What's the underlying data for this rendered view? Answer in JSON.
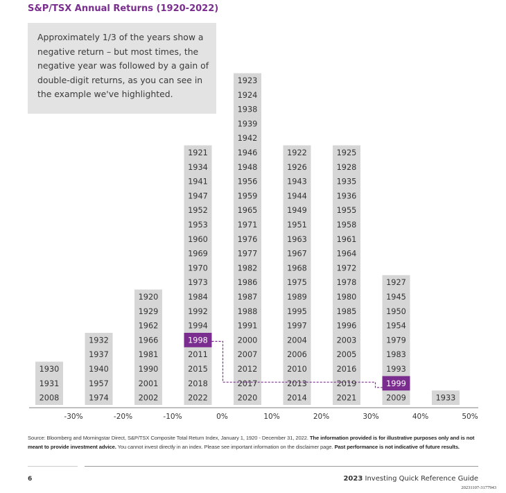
{
  "title": "S&P/TSX Annual Returns (1920-2022)",
  "callout_text": "Approximately 1/3 of the years show a negative return – but most times, the negative year was followed by a gain of double-digit returns, as you can see in the example we've highlighted.",
  "colors": {
    "title": "#7a2d8e",
    "bar": "#d6d6d6",
    "highlight": "#7a2d8e",
    "callout_bg": "#e3e3e3"
  },
  "chart_data": {
    "type": "bar",
    "description_of_bins": "Years stacked by annual return range",
    "x_axis_ticks": [
      "-30%",
      "-20%",
      "-10%",
      "0%",
      "10%",
      "20%",
      "30%",
      "40%",
      "50%"
    ],
    "bins": [
      {
        "range": "-40% to -30%",
        "years": [
          "2008",
          "1931",
          "1930"
        ]
      },
      {
        "range": "-30% to -20%",
        "years": [
          "1974",
          "1957",
          "1940",
          "1937",
          "1932"
        ]
      },
      {
        "range": "-20% to -10%",
        "years": [
          "2002",
          "2001",
          "1990",
          "1981",
          "1966",
          "1962",
          "1929",
          "1920"
        ]
      },
      {
        "range": "-10% to 0%",
        "years": [
          "2022",
          "2018",
          "2015",
          "2011",
          "1998",
          "1994",
          "1992",
          "1984",
          "1973",
          "1970",
          "1969",
          "1960",
          "1953",
          "1952",
          "1947",
          "1941",
          "1934",
          "1921"
        ]
      },
      {
        "range": "0% to 10%",
        "years": [
          "2020",
          "2017",
          "2012",
          "2007",
          "2000",
          "1991",
          "1988",
          "1987",
          "1986",
          "1982",
          "1977",
          "1976",
          "1971",
          "1965",
          "1959",
          "1956",
          "1948",
          "1946",
          "1942",
          "1939",
          "1938",
          "1924",
          "1923"
        ]
      },
      {
        "range": "10% to 20%",
        "years": [
          "2014",
          "2013",
          "2010",
          "2006",
          "2004",
          "1997",
          "1995",
          "1989",
          "1975",
          "1968",
          "1967",
          "1963",
          "1951",
          "1949",
          "1944",
          "1943",
          "1926",
          "1922"
        ]
      },
      {
        "range": "20% to 30%",
        "years": [
          "2021",
          "2019",
          "2016",
          "2005",
          "2003",
          "1996",
          "1985",
          "1980",
          "1978",
          "1972",
          "1964",
          "1961",
          "1958",
          "1955",
          "1936",
          "1935",
          "1928",
          "1925"
        ]
      },
      {
        "range": "30% to 40%",
        "years": [
          "2009",
          "1999",
          "1993",
          "1983",
          "1979",
          "1954",
          "1950",
          "1945",
          "1927"
        ]
      },
      {
        "range": "40% to 50%",
        "years": [
          "1933"
        ]
      }
    ],
    "highlighted": [
      {
        "bin": 3,
        "year": "1998"
      },
      {
        "bin": 7,
        "year": "1999"
      }
    ]
  },
  "footnote": {
    "source": "Source: Bloomberg and Morningstar Direct, S&P/TSX Composite Total Return Index, January 1, 1920 - December 31, 2022.",
    "bold1": "The information provided is for illustrative purposes only and is not meant to provide investment advice.",
    "text2": "You cannot invest directly in an index. Please see important information on the disclaimer page.",
    "bold2": "Past performance is not indicative of future results."
  },
  "footer": {
    "page_number": "6",
    "guide_year": "2023",
    "guide_title": "Investing Quick Reference Guide",
    "doc_code": "20231107-3177943"
  }
}
